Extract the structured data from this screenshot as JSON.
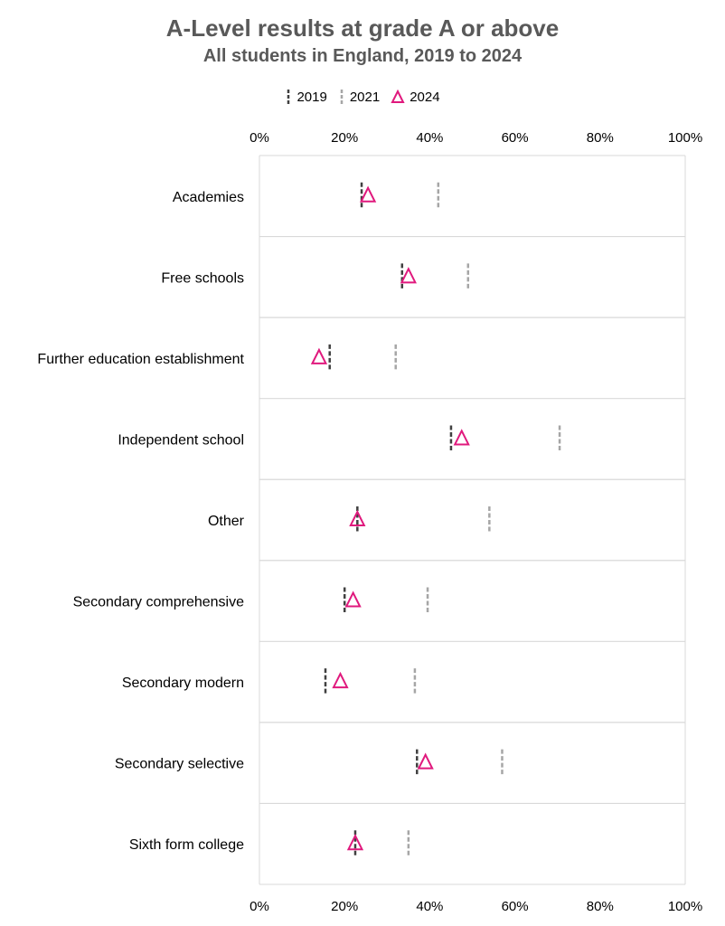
{
  "chart_data": {
    "type": "dot",
    "title": "A-Level results at grade A or above",
    "subtitle": "All students in England, 2019 to 2024",
    "x_tick_labels": [
      "0%",
      "20%",
      "40%",
      "60%",
      "80%",
      "100%"
    ],
    "xlim": [
      0,
      100
    ],
    "legend_position": "top",
    "categories": [
      "Academies",
      "Free schools",
      "Further education establishment",
      "Independent school",
      "Other",
      "Secondary comprehensive",
      "Secondary modern",
      "Secondary selective",
      "Sixth form college"
    ],
    "series": [
      {
        "name": "2019",
        "marker": "dash",
        "color": "#404040",
        "values": [
          24.0,
          33.5,
          16.5,
          45.0,
          23.0,
          20.0,
          15.5,
          37.0,
          22.5
        ]
      },
      {
        "name": "2021",
        "marker": "dash",
        "color": "#a6a6a6",
        "values": [
          42.0,
          49.0,
          32.0,
          70.5,
          54.0,
          39.5,
          36.5,
          57.0,
          35.0
        ]
      },
      {
        "name": "2024",
        "marker": "triangle",
        "color": "#e0197d",
        "values": [
          25.5,
          35.0,
          14.0,
          47.5,
          23.0,
          22.0,
          19.0,
          39.0,
          22.5
        ]
      }
    ],
    "grid": "horizontal separators between categories"
  }
}
